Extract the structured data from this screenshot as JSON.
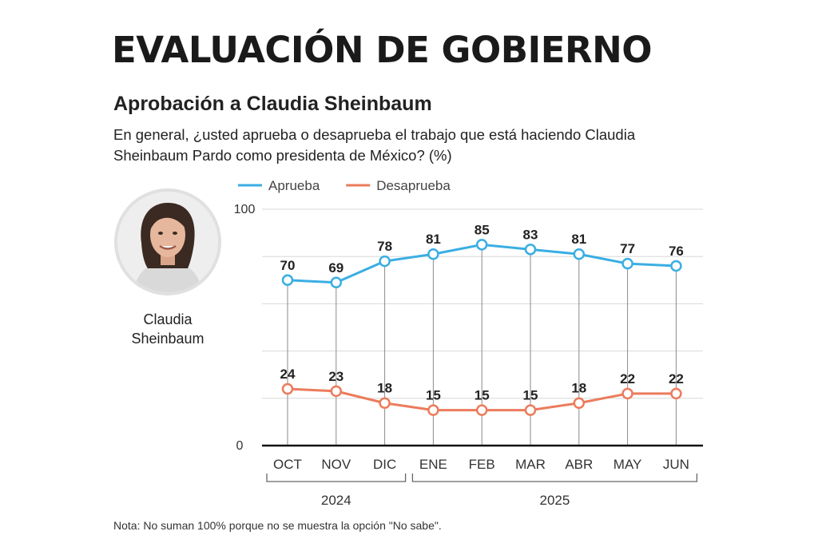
{
  "header": {
    "title": "EVALUACIÓN DE GOBIERNO",
    "subtitle": "Aprobación a Claudia Sheinbaum",
    "question_line1": "En general, ¿usted aprueba o desaprueba el trabajo que está haciendo Claudia",
    "question_line2": "Sheinbaum Pardo como presidenta de México? (%)"
  },
  "person": {
    "name_line1": "Claudia",
    "name_line2": "Sheinbaum"
  },
  "note": "Nota: No suman 100% porque no se muestra la opción \"No sabe\".",
  "colors": {
    "aprueba": "#3aaee3",
    "desaprueba": "#ec7b5c",
    "grid": "#d8d8d8",
    "axis": "#111111"
  },
  "chart_data": {
    "type": "line",
    "categories": [
      "OCT",
      "NOV",
      "DIC",
      "ENE",
      "FEB",
      "MAR",
      "ABR",
      "MAY",
      "JUN"
    ],
    "year_groups": [
      {
        "label": "2024",
        "categories": [
          "OCT",
          "NOV",
          "DIC"
        ]
      },
      {
        "label": "2025",
        "categories": [
          "ENE",
          "FEB",
          "MAR",
          "ABR",
          "MAY",
          "JUN"
        ]
      }
    ],
    "series": [
      {
        "name": "Aprueba",
        "values": [
          70,
          69,
          78,
          81,
          85,
          83,
          81,
          77,
          76
        ]
      },
      {
        "name": "Desaprueba",
        "values": [
          24,
          23,
          18,
          15,
          15,
          15,
          18,
          22,
          22
        ]
      }
    ],
    "ylim": [
      0,
      100
    ],
    "y_tick_labels": [
      "0",
      "100"
    ],
    "grid": true,
    "legend_position": "top-left"
  }
}
